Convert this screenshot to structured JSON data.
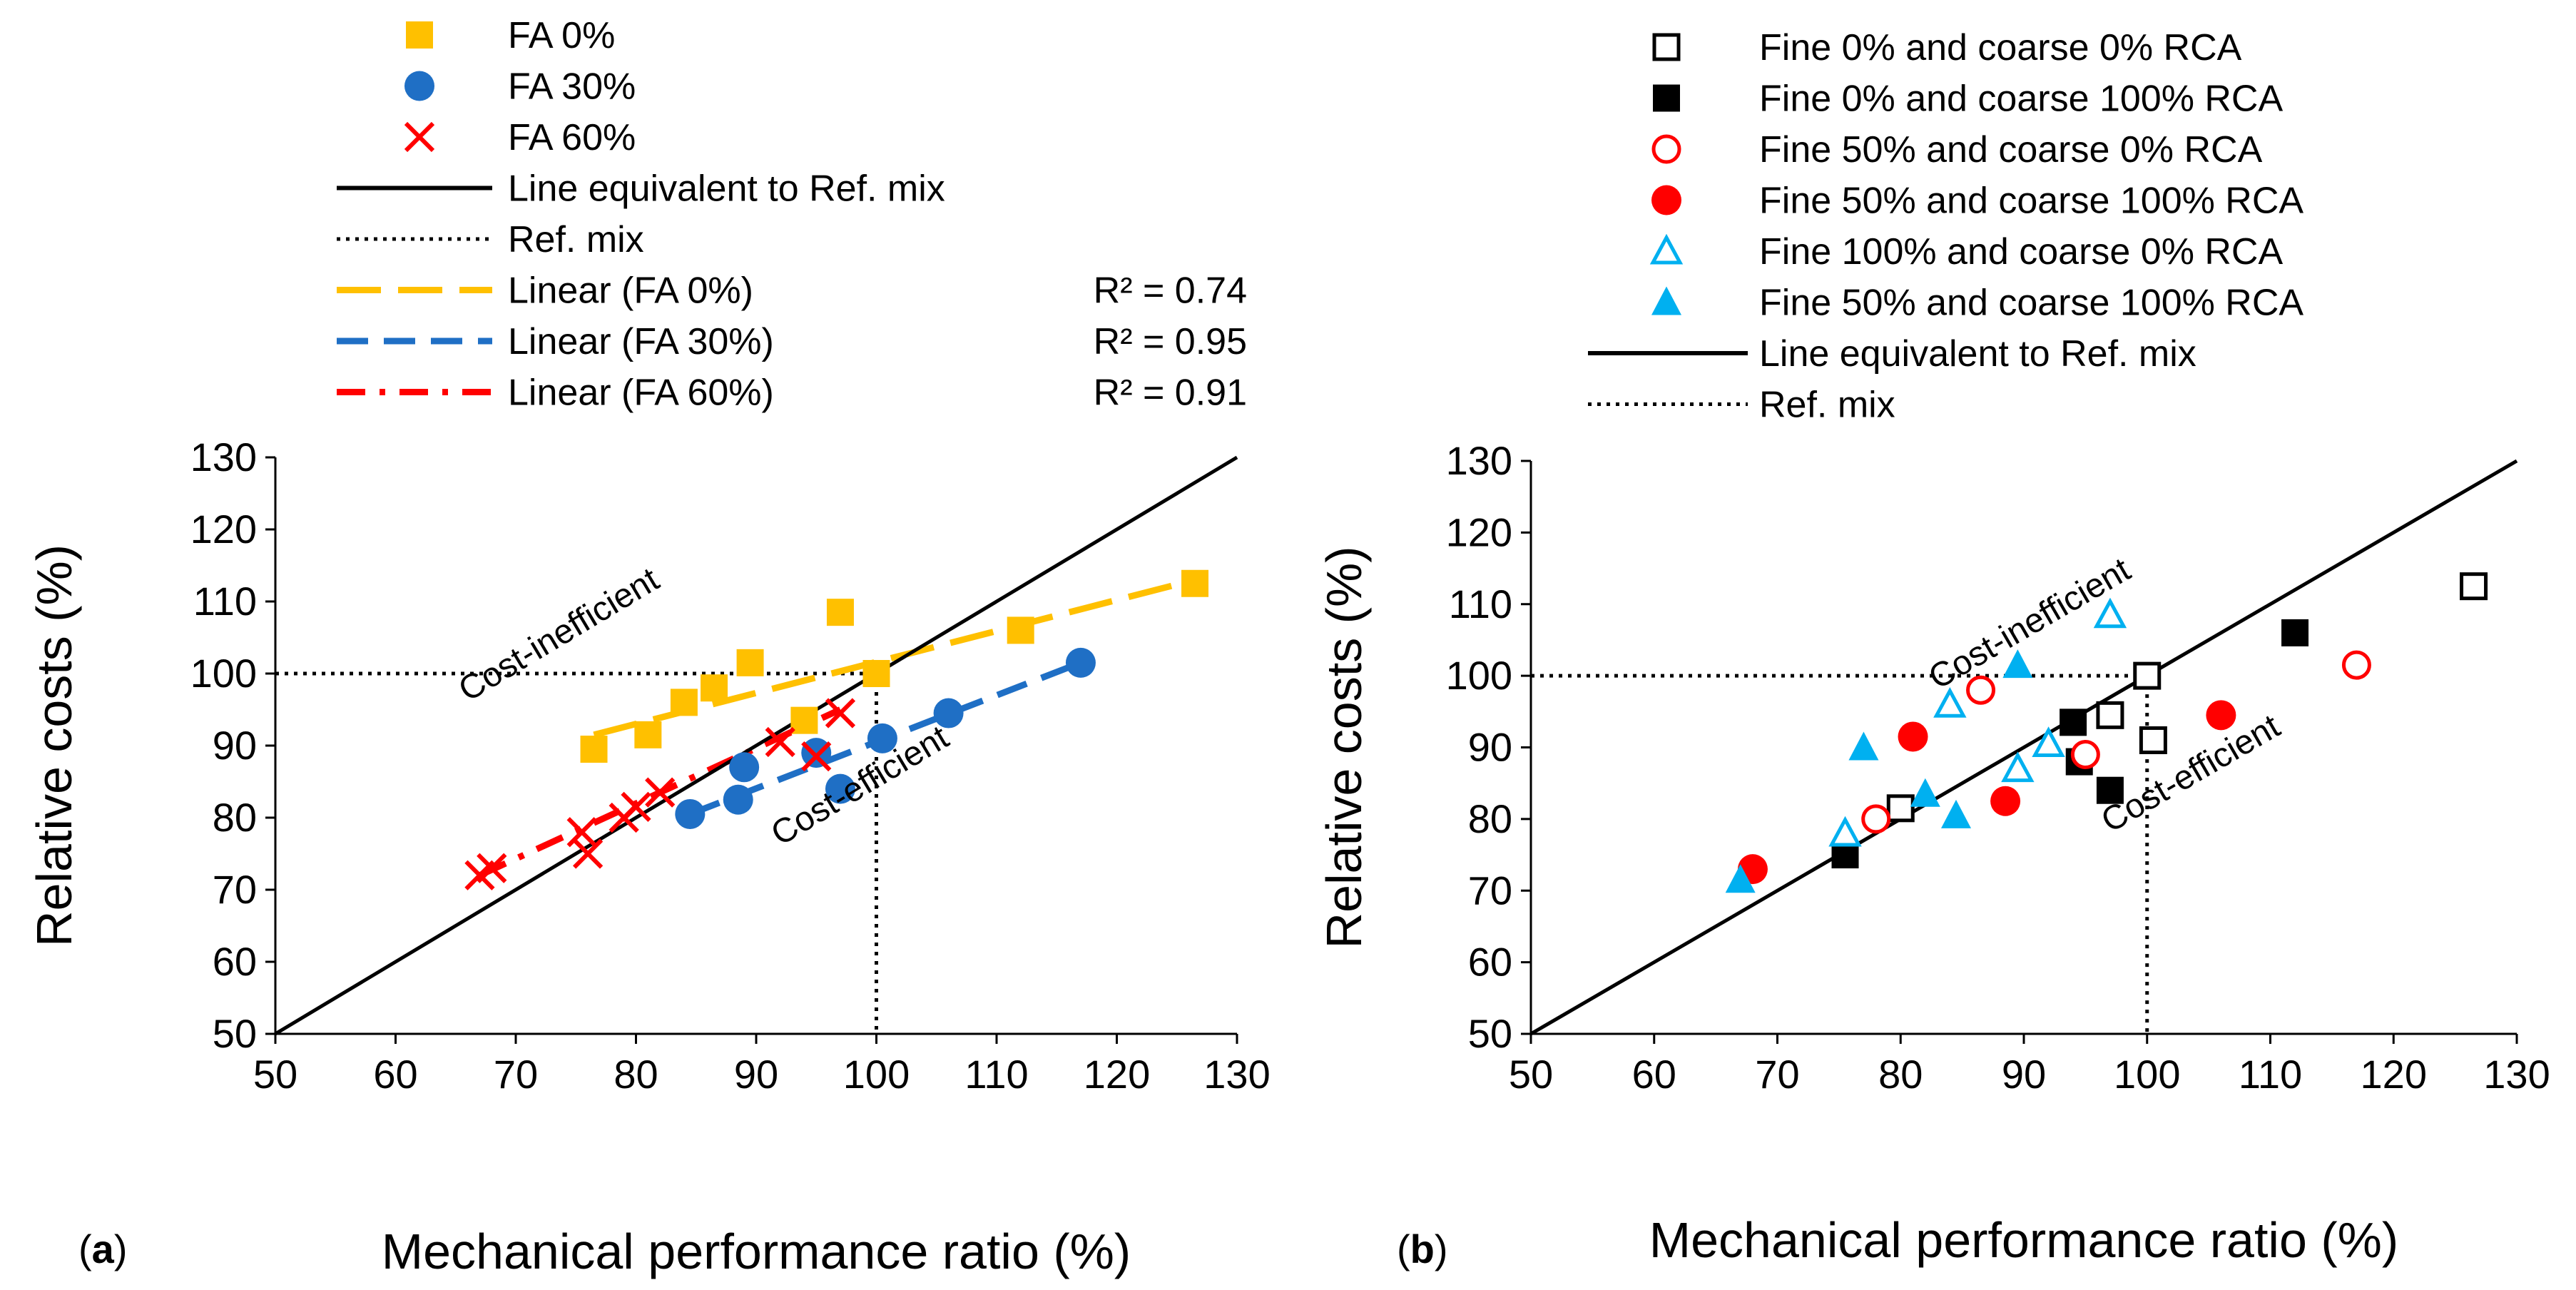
{
  "chart_data": [
    {
      "type": "scatter",
      "panel_label": "(a)",
      "xlabel": "Mechanical performance ratio (%)",
      "ylabel": "Relative costs (%)",
      "xlim": [
        50,
        130
      ],
      "ylim": [
        50,
        130
      ],
      "xticks": [
        "50",
        "60",
        "70",
        "80",
        "90",
        "100",
        "110",
        "120",
        "130"
      ],
      "yticks": [
        "50",
        "60",
        "70",
        "80",
        "90",
        "100",
        "110",
        "120",
        "130"
      ],
      "annotations": {
        "upper": "Cost-inefficient",
        "lower": "Cost-efficient"
      },
      "reference": {
        "equivalent_line_label": "Line equivalent to Ref. mix",
        "ref_mix_label": "Ref. mix",
        "ref_x": 100,
        "ref_y": 100
      },
      "series": [
        {
          "name": "FA 0%",
          "marker": "square-filled",
          "color": "#FFC000",
          "points": [
            [
              76.5,
              89.5
            ],
            [
              81,
              91.5
            ],
            [
              84,
              96
            ],
            [
              86.5,
              98
            ],
            [
              89.5,
              101.5
            ],
            [
              94,
              93.5
            ],
            [
              97,
              108.5
            ],
            [
              100,
              100
            ],
            [
              112,
              106
            ],
            [
              126.5,
              112.5
            ]
          ]
        },
        {
          "name": "FA 30%",
          "marker": "circle-filled",
          "color": "#1F6FC5",
          "points": [
            [
              84.5,
              80.5
            ],
            [
              88.5,
              82.5
            ],
            [
              89,
              87
            ],
            [
              95,
              89
            ],
            [
              97,
              84
            ],
            [
              100.5,
              91
            ],
            [
              106,
              94.5
            ],
            [
              117,
              101.5
            ]
          ]
        },
        {
          "name": "FA 60%",
          "marker": "cross",
          "color": "#FF0000",
          "points": [
            [
              67,
              72
            ],
            [
              68,
              73
            ],
            [
              75.5,
              78
            ],
            [
              76,
              75
            ],
            [
              79,
              80
            ],
            [
              80,
              81.5
            ],
            [
              82,
              83.5
            ],
            [
              92,
              90.5
            ],
            [
              95,
              88.5
            ],
            [
              97,
              94.5
            ]
          ]
        }
      ],
      "trendlines": [
        {
          "name": "Linear (FA 0%)",
          "color": "#FFC000",
          "style": "long-dash",
          "x": [
            76.5,
            126.5
          ],
          "y": [
            91.5,
            113
          ],
          "r2": "R² = 0.74"
        },
        {
          "name": "Linear (FA 30%)",
          "color": "#1F6FC5",
          "style": "dash",
          "x": [
            84.5,
            117
          ],
          "y": [
            80.5,
            101.5
          ],
          "r2": "R² = 0.95"
        },
        {
          "name": "Linear (FA 60%)",
          "color": "#FF0000",
          "style": "dash-dot",
          "x": [
            67,
            97
          ],
          "y": [
            72,
            95
          ],
          "r2": "R² = 0.91"
        }
      ]
    },
    {
      "type": "scatter",
      "panel_label": "(b)",
      "xlabel": "Mechanical performance ratio (%)",
      "ylabel": "Relative costs (%)",
      "xlim": [
        50,
        130
      ],
      "ylim": [
        50,
        130
      ],
      "xticks": [
        "50",
        "60",
        "70",
        "80",
        "90",
        "100",
        "110",
        "120",
        "130"
      ],
      "yticks": [
        "50",
        "60",
        "70",
        "80",
        "90",
        "100",
        "110",
        "120",
        "130"
      ],
      "annotations": {
        "upper": "Cost-inefficient",
        "lower": "Cost-efficient"
      },
      "reference": {
        "equivalent_line_label": "Line equivalent to Ref. mix",
        "ref_mix_label": "Ref. mix",
        "ref_x": 100,
        "ref_y": 100
      },
      "series": [
        {
          "name": "Fine 0% and coarse 0% RCA",
          "marker": "square-open",
          "color": "#000000",
          "points": [
            [
              80,
              81.5
            ],
            [
              97,
              94.5
            ],
            [
              100,
              100
            ],
            [
              100.5,
              91
            ],
            [
              126.5,
              112.5
            ]
          ]
        },
        {
          "name": "Fine 0% and coarse 100% RCA",
          "marker": "square-filled",
          "color": "#000000",
          "points": [
            [
              75.5,
              75
            ],
            [
              94,
              93.5
            ],
            [
              94.5,
              88
            ],
            [
              97,
              84
            ],
            [
              112,
              106
            ]
          ]
        },
        {
          "name": "Fine 50% and coarse 0% RCA",
          "marker": "circle-open",
          "color": "#FF0000",
          "points": [
            [
              78,
              80
            ],
            [
              86.5,
              98
            ],
            [
              95,
              89
            ],
            [
              117,
              101.5
            ]
          ]
        },
        {
          "name": "Fine 50% and coarse 100% RCA",
          "marker": "circle-filled",
          "color": "#FF0000",
          "points": [
            [
              68,
              73
            ],
            [
              81,
              91.5
            ],
            [
              88.5,
              82.5
            ],
            [
              106,
              94.5
            ]
          ]
        },
        {
          "name": "Fine 100% and coarse 0% RCA",
          "marker": "triangle-open",
          "color": "#00B0F0",
          "points": [
            [
              75.5,
              78
            ],
            [
              84,
              96
            ],
            [
              89.5,
              87
            ],
            [
              92,
              90.5
            ],
            [
              97,
              108.5
            ]
          ]
        },
        {
          "name": "Fine 50% and coarse 100% RCA",
          "marker": "triangle-filled",
          "color": "#00B0F0",
          "points": [
            [
              67,
              71.5
            ],
            [
              77,
              90
            ],
            [
              82,
              83.5
            ],
            [
              84.5,
              80.5
            ],
            [
              89.5,
              101.5
            ]
          ]
        }
      ]
    }
  ]
}
